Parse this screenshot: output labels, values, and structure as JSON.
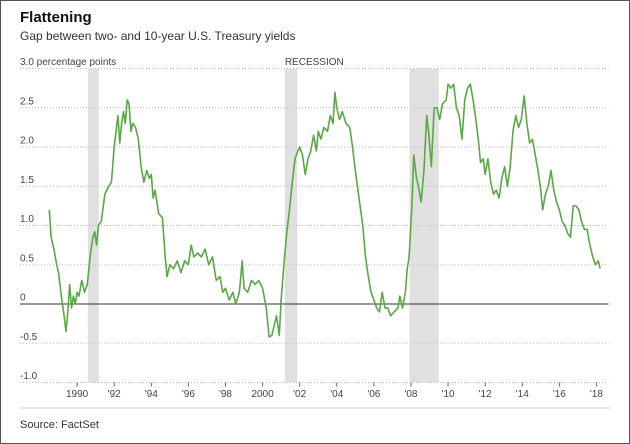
{
  "chart_data": {
    "type": "line",
    "title": "Flattening",
    "subtitle": "Gap between two- and 10-year U.S. Treasury yields",
    "source": "Source: FactSet",
    "recession_label": "RECESSION",
    "recessions": [
      [
        1990.58,
        1991.17
      ],
      [
        2001.2,
        2001.87
      ],
      [
        2007.92,
        2009.5
      ]
    ],
    "recession_color": "#e0e0e0",
    "color": "#5aa845",
    "grid": true,
    "xlim": [
      1988,
      2018.65
    ],
    "ylim": [
      -1.0,
      3.0
    ],
    "yticks": [
      {
        "value": 3.0,
        "label": "3.0 percentage points"
      },
      2.5,
      {
        "value": 2.0,
        "label": "2.0"
      },
      1.5,
      {
        "value": 1.0,
        "label": "1.0"
      },
      0.5,
      0,
      -0.5,
      {
        "value": -1.0,
        "label": "-1.0"
      }
    ],
    "xticks": [
      {
        "value": 1990,
        "label": "1990"
      },
      {
        "value": 1992,
        "label": "'92"
      },
      {
        "value": 1994,
        "label": "'94"
      },
      {
        "value": 1996,
        "label": "'96"
      },
      {
        "value": 1998,
        "label": "'98"
      },
      {
        "value": 2000,
        "label": "2000"
      },
      {
        "value": 2002,
        "label": "'02"
      },
      {
        "value": 2004,
        "label": "'04"
      },
      {
        "value": 2006,
        "label": "'06"
      },
      {
        "value": 2008,
        "label": "'08"
      },
      {
        "value": 2010,
        "label": "'10"
      },
      {
        "value": 2012,
        "label": "'12"
      },
      {
        "value": 2014,
        "label": "'14"
      },
      {
        "value": 2016,
        "label": "'16"
      },
      {
        "value": 2018,
        "label": "'18"
      }
    ],
    "x": [
      1988.5,
      1988.6,
      1988.75,
      1988.9,
      1989.0,
      1989.15,
      1989.3,
      1989.4,
      1989.5,
      1989.6,
      1989.7,
      1989.8,
      1989.9,
      1990.0,
      1990.1,
      1990.25,
      1990.4,
      1990.55,
      1990.7,
      1990.85,
      1990.95,
      1991.05,
      1991.15,
      1991.3,
      1991.5,
      1991.7,
      1991.85,
      1992.0,
      1992.1,
      1992.2,
      1992.3,
      1992.4,
      1992.5,
      1992.6,
      1992.7,
      1992.8,
      1992.9,
      1993.0,
      1993.15,
      1993.3,
      1993.45,
      1993.6,
      1993.75,
      1993.9,
      1994.0,
      1994.1,
      1994.2,
      1994.4,
      1994.6,
      1994.75,
      1994.85,
      1995.0,
      1995.2,
      1995.4,
      1995.6,
      1995.8,
      1996.0,
      1996.15,
      1996.3,
      1996.5,
      1996.7,
      1996.9,
      1997.1,
      1997.3,
      1997.5,
      1997.7,
      1997.85,
      1998.0,
      1998.2,
      1998.4,
      1998.55,
      1998.75,
      1998.9,
      1999.0,
      1999.2,
      1999.4,
      1999.6,
      1999.8,
      2000.0,
      2000.2,
      2000.35,
      2000.5,
      2000.6,
      2000.75,
      2000.9,
      2001.0,
      2001.15,
      2001.3,
      2001.45,
      2001.6,
      2001.75,
      2001.9,
      2002.0,
      2002.15,
      2002.3,
      2002.45,
      2002.6,
      2002.75,
      2002.9,
      2003.0,
      2003.15,
      2003.3,
      2003.5,
      2003.65,
      2003.8,
      2003.9,
      2004.0,
      2004.15,
      2004.3,
      2004.5,
      2004.7,
      2004.85,
      2005.0,
      2005.2,
      2005.4,
      2005.55,
      2005.7,
      2005.85,
      2006.0,
      2006.15,
      2006.3,
      2006.45,
      2006.6,
      2006.75,
      2006.9,
      2007.1,
      2007.3,
      2007.4,
      2007.55,
      2007.7,
      2007.8,
      2007.9,
      2008.05,
      2008.15,
      2008.3,
      2008.4,
      2008.55,
      2008.7,
      2008.85,
      2008.95,
      2009.1,
      2009.25,
      2009.4,
      2009.55,
      2009.7,
      2009.9,
      2010.0,
      2010.15,
      2010.3,
      2010.45,
      2010.6,
      2010.75,
      2010.9,
      2011.05,
      2011.2,
      2011.35,
      2011.5,
      2011.65,
      2011.75,
      2011.9,
      2012.0,
      2012.15,
      2012.3,
      2012.45,
      2012.6,
      2012.75,
      2012.9,
      2013.05,
      2013.2,
      2013.35,
      2013.5,
      2013.65,
      2013.8,
      2013.95,
      2014.1,
      2014.25,
      2014.4,
      2014.55,
      2014.7,
      2014.85,
      2015.0,
      2015.1,
      2015.25,
      2015.4,
      2015.55,
      2015.7,
      2015.85,
      2016.0,
      2016.15,
      2016.3,
      2016.45,
      2016.6,
      2016.75,
      2016.9,
      2017.05,
      2017.2,
      2017.35,
      2017.5,
      2017.65,
      2017.8,
      2017.95,
      2018.1,
      2018.2
    ],
    "values": [
      1.2,
      0.85,
      0.7,
      0.5,
      0.4,
      0.1,
      -0.15,
      -0.35,
      -0.1,
      0.25,
      -0.05,
      0.1,
      0.0,
      0.15,
      0.1,
      0.3,
      0.15,
      0.25,
      0.6,
      0.85,
      0.92,
      0.75,
      1.0,
      1.05,
      1.4,
      1.5,
      1.55,
      2.0,
      2.2,
      2.4,
      2.05,
      2.3,
      2.45,
      2.3,
      2.6,
      2.55,
      2.2,
      2.3,
      2.25,
      2.1,
      1.75,
      1.55,
      1.7,
      1.6,
      1.65,
      1.35,
      1.45,
      1.15,
      1.1,
      0.6,
      0.35,
      0.5,
      0.45,
      0.55,
      0.4,
      0.55,
      0.5,
      0.75,
      0.6,
      0.65,
      0.6,
      0.7,
      0.5,
      0.6,
      0.3,
      0.35,
      0.15,
      0.2,
      0.05,
      0.15,
      0.0,
      0.15,
      0.55,
      0.2,
      0.15,
      0.3,
      0.25,
      0.3,
      0.2,
      -0.05,
      -0.42,
      -0.4,
      -0.3,
      -0.15,
      -0.4,
      0.05,
      0.5,
      0.9,
      1.2,
      1.55,
      1.85,
      1.95,
      2.0,
      1.9,
      1.65,
      1.85,
      1.95,
      2.15,
      1.95,
      2.2,
      2.1,
      2.25,
      2.2,
      2.4,
      2.3,
      2.7,
      2.5,
      2.35,
      2.45,
      2.3,
      2.25,
      2.0,
      1.7,
      1.35,
      1.0,
      0.6,
      0.35,
      0.15,
      0.05,
      -0.05,
      -0.1,
      0.15,
      -0.05,
      -0.05,
      -0.15,
      -0.1,
      -0.05,
      0.1,
      -0.05,
      0.15,
      0.45,
      0.6,
      1.25,
      1.9,
      1.6,
      1.5,
      1.3,
      1.7,
      2.4,
      2.2,
      1.75,
      2.5,
      2.5,
      2.35,
      2.55,
      2.6,
      2.8,
      2.75,
      2.8,
      2.5,
      2.4,
      2.1,
      2.6,
      2.75,
      2.8,
      2.6,
      2.35,
      2.05,
      1.8,
      1.85,
      1.65,
      1.85,
      1.55,
      1.4,
      1.45,
      1.35,
      1.6,
      1.75,
      1.5,
      1.75,
      2.2,
      2.4,
      2.25,
      2.35,
      2.65,
      2.3,
      2.05,
      2.1,
      1.9,
      1.7,
      1.45,
      1.2,
      1.4,
      1.5,
      1.7,
      1.45,
      1.3,
      1.2,
      1.05,
      1.0,
      0.9,
      0.85,
      1.25,
      1.25,
      1.2,
      1.05,
      0.95,
      0.95,
      0.75,
      0.6,
      0.5,
      0.55,
      0.45
    ]
  }
}
